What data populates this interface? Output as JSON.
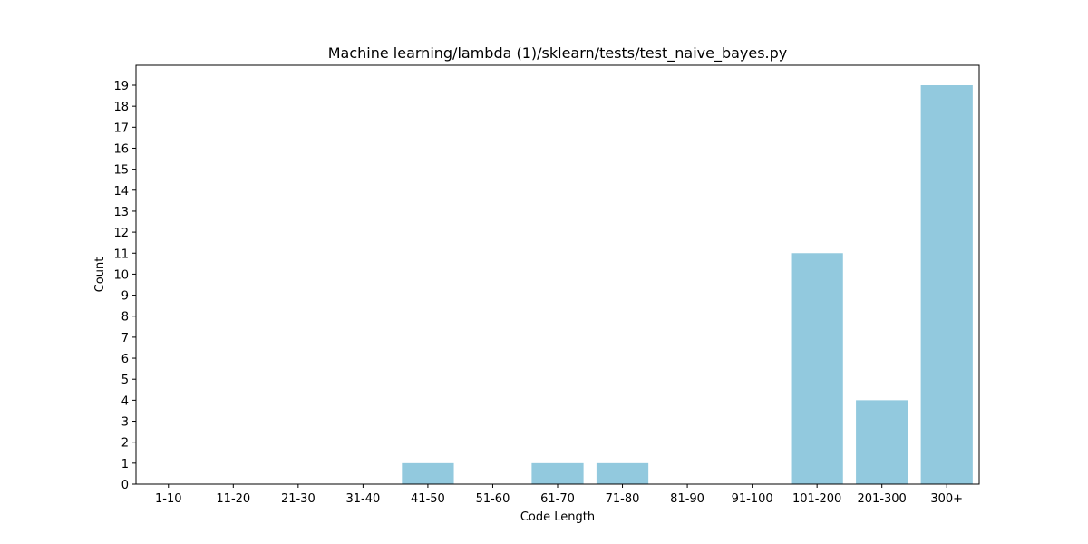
{
  "chart_data": {
    "type": "bar",
    "title": "Machine learning/lambda (1)/sklearn/tests/test_naive_bayes.py",
    "xlabel": "Code Length",
    "ylabel": "Count",
    "categories": [
      "1-10",
      "11-20",
      "21-30",
      "31-40",
      "41-50",
      "51-60",
      "61-70",
      "71-80",
      "81-90",
      "91-100",
      "101-200",
      "201-300",
      "300+"
    ],
    "values": [
      0,
      0,
      0,
      0,
      1,
      0,
      1,
      1,
      0,
      0,
      11,
      4,
      19
    ],
    "ylim": [
      0,
      19.95
    ],
    "yticks": [
      0,
      1,
      2,
      3,
      4,
      5,
      6,
      7,
      8,
      9,
      10,
      11,
      12,
      13,
      14,
      15,
      16,
      17,
      18,
      19
    ],
    "grid": false,
    "bar_color": "#92c9de"
  }
}
